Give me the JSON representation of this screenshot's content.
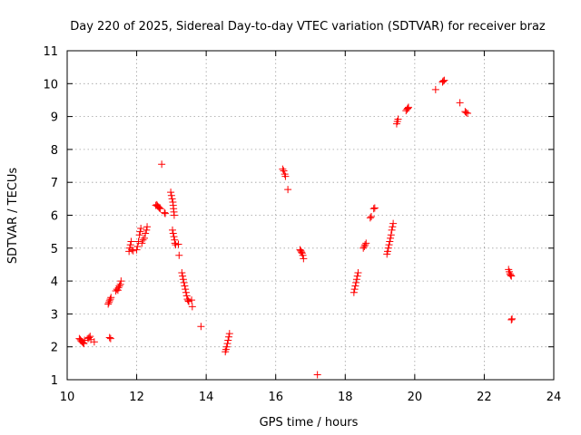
{
  "chart_data": {
    "type": "scatter",
    "title": "Day 220 of 2025, Sidereal Day-to-day VTEC variation (SDTVAR) for receiver braz",
    "xlabel": "GPS time / hours",
    "ylabel": "SDTVAR / TECUs",
    "xlim": [
      10,
      24
    ],
    "ylim": [
      1,
      11
    ],
    "xticks": [
      "10",
      "12",
      "14",
      "16",
      "18",
      "20",
      "22",
      "24"
    ],
    "yticks": [
      "1",
      "2",
      "3",
      "4",
      "5",
      "6",
      "7",
      "8",
      "9",
      "10",
      "11"
    ],
    "grid": true,
    "marker": "+",
    "color": "#ff0000",
    "series": [
      {
        "name": "braz",
        "points": [
          [
            10.35,
            2.25
          ],
          [
            10.38,
            2.22
          ],
          [
            10.4,
            2.18
          ],
          [
            10.43,
            2.15
          ],
          [
            10.46,
            2.12
          ],
          [
            10.48,
            2.1
          ],
          [
            10.5,
            2.2
          ],
          [
            10.6,
            2.25
          ],
          [
            10.63,
            2.28
          ],
          [
            10.66,
            2.32
          ],
          [
            10.68,
            2.22
          ],
          [
            10.78,
            2.15
          ],
          [
            11.18,
            3.3
          ],
          [
            11.2,
            3.35
          ],
          [
            11.22,
            3.4
          ],
          [
            11.24,
            3.45
          ],
          [
            11.26,
            3.5
          ],
          [
            11.22,
            2.28
          ],
          [
            11.25,
            2.25
          ],
          [
            11.4,
            3.7
          ],
          [
            11.43,
            3.75
          ],
          [
            11.46,
            3.72
          ],
          [
            11.48,
            3.8
          ],
          [
            11.5,
            3.85
          ],
          [
            11.53,
            3.9
          ],
          [
            11.55,
            4.0
          ],
          [
            11.78,
            4.9
          ],
          [
            11.8,
            5.0
          ],
          [
            11.82,
            5.1
          ],
          [
            11.84,
            5.2
          ],
          [
            11.86,
            4.95
          ],
          [
            11.9,
            4.92
          ],
          [
            12.0,
            4.95
          ],
          [
            12.02,
            5.05
          ],
          [
            12.05,
            5.2
          ],
          [
            12.08,
            5.4
          ],
          [
            12.1,
            5.5
          ],
          [
            12.12,
            5.6
          ],
          [
            12.15,
            5.15
          ],
          [
            12.18,
            5.25
          ],
          [
            12.22,
            5.3
          ],
          [
            12.25,
            5.45
          ],
          [
            12.28,
            5.55
          ],
          [
            12.3,
            5.65
          ],
          [
            12.55,
            6.3
          ],
          [
            12.58,
            6.32
          ],
          [
            12.6,
            6.28
          ],
          [
            12.63,
            6.25
          ],
          [
            12.65,
            6.22
          ],
          [
            12.68,
            6.2
          ],
          [
            12.72,
            7.55
          ],
          [
            12.8,
            6.08
          ],
          [
            12.82,
            6.05
          ],
          [
            12.98,
            6.7
          ],
          [
            13.0,
            6.6
          ],
          [
            13.02,
            6.5
          ],
          [
            13.04,
            6.4
          ],
          [
            13.05,
            6.3
          ],
          [
            13.06,
            6.2
          ],
          [
            13.07,
            6.1
          ],
          [
            13.08,
            6.0
          ],
          [
            13.03,
            5.55
          ],
          [
            13.05,
            5.45
          ],
          [
            13.07,
            5.35
          ],
          [
            13.09,
            5.25
          ],
          [
            13.1,
            5.15
          ],
          [
            13.12,
            5.1
          ],
          [
            13.2,
            5.12
          ],
          [
            13.22,
            4.78
          ],
          [
            13.3,
            4.25
          ],
          [
            13.32,
            4.15
          ],
          [
            13.34,
            4.05
          ],
          [
            13.36,
            3.95
          ],
          [
            13.38,
            3.85
          ],
          [
            13.4,
            3.75
          ],
          [
            13.42,
            3.65
          ],
          [
            13.44,
            3.55
          ],
          [
            13.46,
            3.45
          ],
          [
            13.48,
            3.4
          ],
          [
            13.5,
            3.38
          ],
          [
            13.58,
            3.42
          ],
          [
            13.6,
            3.22
          ],
          [
            13.85,
            2.62
          ],
          [
            14.55,
            1.85
          ],
          [
            14.57,
            1.92
          ],
          [
            14.59,
            2.0
          ],
          [
            14.61,
            2.1
          ],
          [
            14.63,
            2.2
          ],
          [
            14.65,
            2.3
          ],
          [
            14.67,
            2.4
          ],
          [
            16.2,
            7.4
          ],
          [
            16.23,
            7.35
          ],
          [
            16.26,
            7.25
          ],
          [
            16.28,
            7.18
          ],
          [
            16.35,
            6.78
          ],
          [
            16.7,
            4.95
          ],
          [
            16.72,
            4.92
          ],
          [
            16.74,
            4.88
          ],
          [
            16.76,
            4.85
          ],
          [
            16.78,
            4.78
          ],
          [
            16.8,
            4.68
          ],
          [
            17.2,
            1.15
          ],
          [
            18.25,
            3.65
          ],
          [
            18.27,
            3.75
          ],
          [
            18.29,
            3.85
          ],
          [
            18.31,
            3.95
          ],
          [
            18.33,
            4.05
          ],
          [
            18.35,
            4.15
          ],
          [
            18.37,
            4.25
          ],
          [
            18.52,
            5.0
          ],
          [
            18.55,
            5.05
          ],
          [
            18.57,
            5.1
          ],
          [
            18.6,
            5.15
          ],
          [
            18.72,
            5.92
          ],
          [
            18.75,
            5.96
          ],
          [
            18.82,
            6.2
          ],
          [
            18.85,
            6.22
          ],
          [
            19.2,
            4.82
          ],
          [
            19.22,
            4.9
          ],
          [
            19.24,
            5.0
          ],
          [
            19.26,
            5.1
          ],
          [
            19.28,
            5.2
          ],
          [
            19.3,
            5.3
          ],
          [
            19.32,
            5.4
          ],
          [
            19.34,
            5.55
          ],
          [
            19.36,
            5.65
          ],
          [
            19.38,
            5.75
          ],
          [
            19.48,
            8.78
          ],
          [
            19.5,
            8.85
          ],
          [
            19.52,
            8.92
          ],
          [
            19.75,
            9.18
          ],
          [
            19.78,
            9.22
          ],
          [
            19.8,
            9.25
          ],
          [
            19.82,
            9.28
          ],
          [
            20.6,
            9.82
          ],
          [
            20.8,
            10.05
          ],
          [
            20.82,
            10.08
          ],
          [
            20.85,
            10.1
          ],
          [
            21.3,
            9.42
          ],
          [
            21.45,
            9.15
          ],
          [
            21.48,
            9.12
          ],
          [
            21.52,
            9.1
          ],
          [
            22.7,
            4.35
          ],
          [
            22.72,
            4.28
          ],
          [
            22.74,
            4.22
          ],
          [
            22.76,
            4.18
          ],
          [
            22.78,
            4.15
          ],
          [
            22.78,
            2.82
          ],
          [
            22.8,
            2.85
          ]
        ]
      }
    ]
  }
}
